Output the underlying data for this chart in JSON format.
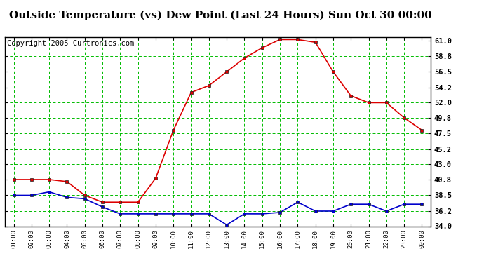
{
  "title": "Outside Temperature (vs) Dew Point (Last 24 Hours) Sun Oct 30 00:00",
  "copyright": "Copyright 2005 Curtronics.com",
  "x_labels": [
    "01:00",
    "02:00",
    "03:00",
    "04:00",
    "05:00",
    "06:00",
    "07:00",
    "08:00",
    "09:00",
    "10:00",
    "11:00",
    "12:00",
    "13:00",
    "14:00",
    "15:00",
    "16:00",
    "17:00",
    "18:00",
    "19:00",
    "20:00",
    "21:00",
    "22:00",
    "23:00",
    "00:00"
  ],
  "temp_data": [
    40.8,
    40.8,
    40.8,
    40.5,
    38.5,
    37.5,
    37.5,
    37.5,
    41.0,
    48.0,
    53.5,
    54.5,
    56.5,
    58.5,
    60.0,
    61.2,
    61.2,
    60.8,
    56.5,
    53.0,
    52.0,
    52.0,
    49.8,
    48.0
  ],
  "dew_data": [
    38.5,
    38.5,
    39.0,
    38.2,
    38.0,
    36.8,
    35.8,
    35.8,
    35.8,
    35.8,
    35.8,
    35.8,
    34.2,
    35.8,
    35.8,
    36.0,
    37.5,
    36.2,
    36.2,
    37.2,
    37.2,
    36.2,
    37.2,
    37.2
  ],
  "y_min": 34.0,
  "y_max": 61.6,
  "y_ticks": [
    34.0,
    36.2,
    38.5,
    40.8,
    43.0,
    45.2,
    47.5,
    49.8,
    52.0,
    54.2,
    56.5,
    58.8,
    61.0
  ],
  "temp_color": "#dd0000",
  "dew_color": "#0000cc",
  "bg_color": "#ffffff",
  "plot_bg": "#ffffff",
  "grid_color": "#00bb00",
  "title_fontsize": 11,
  "copyright_fontsize": 7.5
}
